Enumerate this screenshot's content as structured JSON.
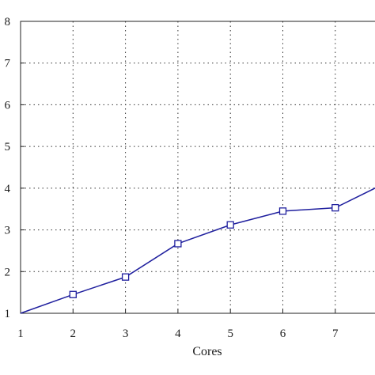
{
  "chart_data": {
    "type": "line",
    "title": "",
    "xlabel": "Cores",
    "ylabel": "",
    "xlim": [
      1,
      8
    ],
    "ylim": [
      1,
      8
    ],
    "x_ticks": [
      1,
      2,
      3,
      4,
      5,
      6,
      7
    ],
    "y_ticks": [
      1,
      2,
      3,
      4,
      5,
      6,
      7,
      8
    ],
    "grid": true,
    "legend": "none",
    "series": [
      {
        "x": [
          1,
          2,
          3,
          4,
          5,
          6,
          7,
          8
        ],
        "values": [
          1.0,
          1.45,
          1.87,
          2.67,
          3.12,
          3.45,
          3.53,
          4.15
        ],
        "color": "#1f1f9e",
        "marker": "square"
      }
    ]
  }
}
